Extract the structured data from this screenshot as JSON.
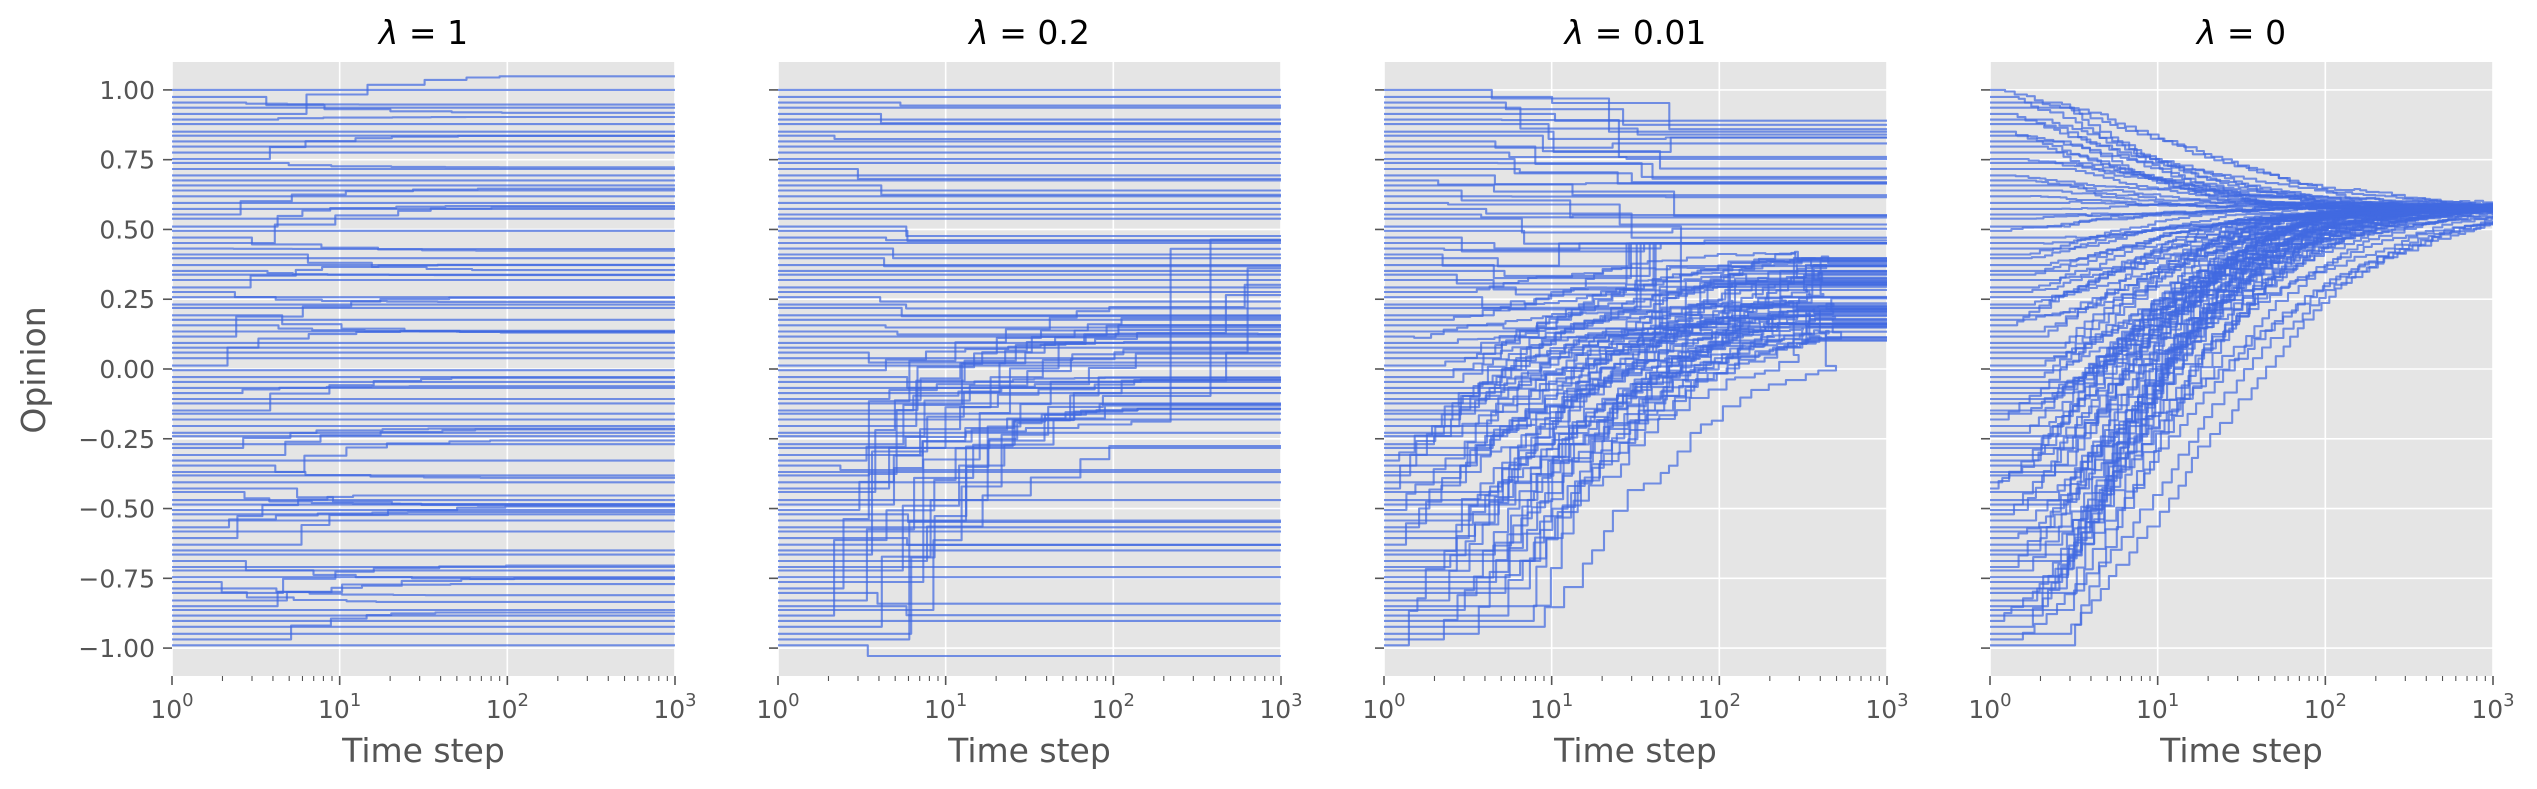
{
  "chart_data": {
    "type": "line",
    "ylabel": "Opinion",
    "xlabel": "Time step",
    "xscale": "log",
    "xlim": [
      1,
      1000
    ],
    "ylim": [
      -1.1,
      1.1
    ],
    "xticks": [
      {
        "value": 1,
        "base": "10",
        "exp": "0"
      },
      {
        "value": 10,
        "base": "10",
        "exp": "1"
      },
      {
        "value": 100,
        "base": "10",
        "exp": "2"
      },
      {
        "value": 1000,
        "base": "10",
        "exp": "3"
      }
    ],
    "yticks": [
      1.0,
      0.75,
      0.5,
      0.25,
      0.0,
      -0.25,
      -0.5,
      -0.75,
      -1.0
    ],
    "ytick_labels": [
      "1.00",
      "0.75",
      "0.50",
      "0.25",
      "0.00",
      "−0.25",
      "−0.50",
      "−0.75",
      "−1.00"
    ],
    "grid": true,
    "line_color": "#4169e1",
    "background_color": "#e5e5e5",
    "n_trajectories": 100,
    "panels": [
      {
        "lambda": "1",
        "title_prefix": "λ",
        "title_eq": " = ",
        "title_value": "1",
        "consensus": null,
        "behaviour": "opinions barely move; most trajectories stay flat near their initial value"
      },
      {
        "lambda": "0.2",
        "title_prefix": "λ",
        "title_eq": " = ",
        "title_value": "0.2",
        "consensus": null,
        "behaviour": "some low opinions climb in steps, with late vertical jumps between 100 and 1000 steps"
      },
      {
        "lambda": "0.01",
        "title_prefix": "λ",
        "title_eq": " = ",
        "title_value": "0.01",
        "consensus": [
          0.15,
          0.65
        ],
        "behaviour": "many negative opinions rise toward a cluster between about 0.1 and 0.4 and stop before 1000 steps"
      },
      {
        "lambda": "0",
        "title_prefix": "λ",
        "title_eq": " = ",
        "title_value": "0",
        "consensus": 0.58,
        "behaviour": "all opinions converge to about 0.58 by 1000 steps"
      }
    ]
  }
}
